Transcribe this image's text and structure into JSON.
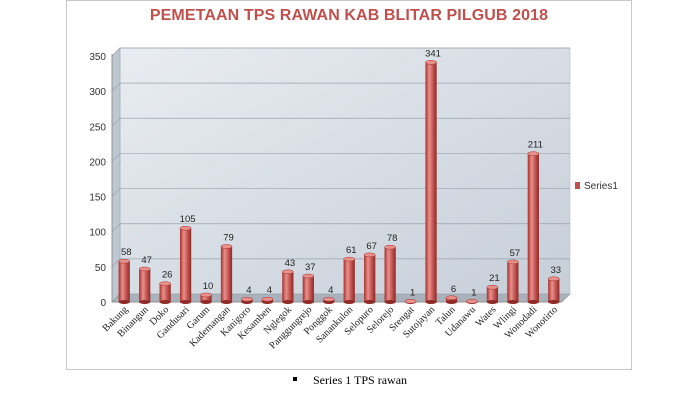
{
  "chart_data": {
    "type": "bar",
    "title": "PEMETAAN TPS RAWAN KAB BLITAR PILGUB 2018",
    "categories": [
      "Bakung",
      "Binangun",
      "Doko",
      "Gandusari",
      "Garum",
      "Kademangan",
      "Kanigoro",
      "Kesamben",
      "Nglegok",
      "Panggungrejo",
      "Ponggok",
      "Sanankulon",
      "Selopuro",
      "Selorejo",
      "Srengat",
      "Sutojayan",
      "Talun",
      "Udanawu",
      "Wates",
      "Wlingi",
      "Wonodadi",
      "Wonotirto"
    ],
    "series": [
      {
        "name": "Series1",
        "values": [
          58,
          47,
          26,
          105,
          10,
          79,
          4,
          4,
          43,
          37,
          4,
          61,
          67,
          78,
          1,
          341,
          6,
          1,
          21,
          57,
          211,
          33
        ]
      }
    ],
    "ylim": [
      0,
      350
    ],
    "yticks": [
      0,
      50,
      100,
      150,
      200,
      250,
      300,
      350
    ],
    "grid": true,
    "legend_position": "right",
    "colors": {
      "bar": "#c0504d",
      "bar_dark": "#7f2422",
      "bar_light": "#e8908c",
      "title": "#c0504d",
      "wall": "#d4dbe4"
    }
  },
  "caption": {
    "text": "Series 1 TPS rawan"
  }
}
